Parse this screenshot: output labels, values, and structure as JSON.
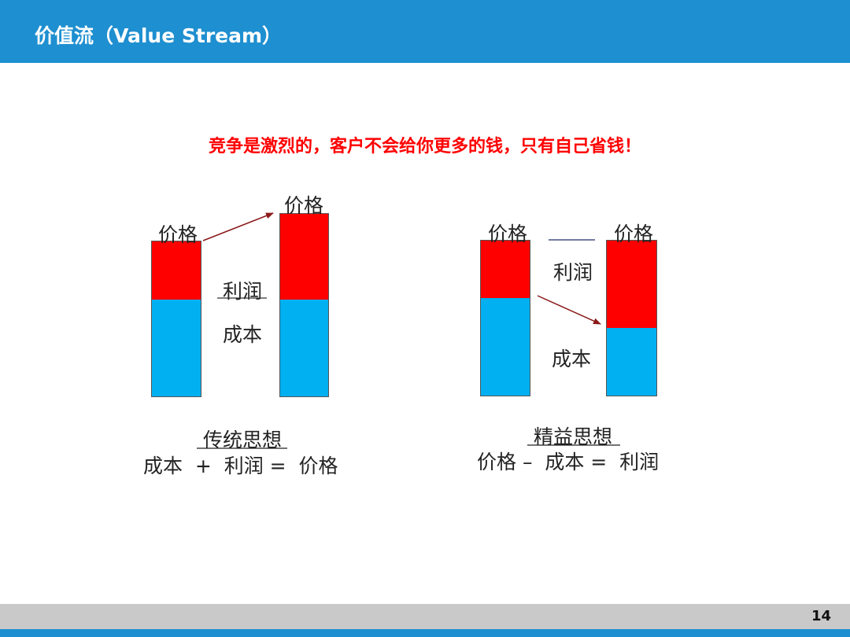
{
  "slide": {
    "title": "价值流（Value Stream）",
    "headline": "竞争是激烈的，客户不会给你更多的钱，只有自己省钱！",
    "page_number": "14"
  },
  "traditional": {
    "label_price_left": "价格",
    "label_price_right": "价格",
    "label_profit": "利润",
    "label_cost": "成本",
    "caption": "传统思想",
    "formula": "成本  +  利润 =  价格"
  },
  "lean": {
    "label_price_left": "价格",
    "label_price_right": "价格",
    "label_profit": "利润",
    "label_cost": "成本",
    "caption": "精益思想",
    "formula": "价格 –  成本 =  利润"
  },
  "colors": {
    "header": "#1e8fd0",
    "profit": "#ff0000",
    "cost": "#00b0f0",
    "headline": "#ff0000",
    "arrow": "#8b1a1a"
  }
}
